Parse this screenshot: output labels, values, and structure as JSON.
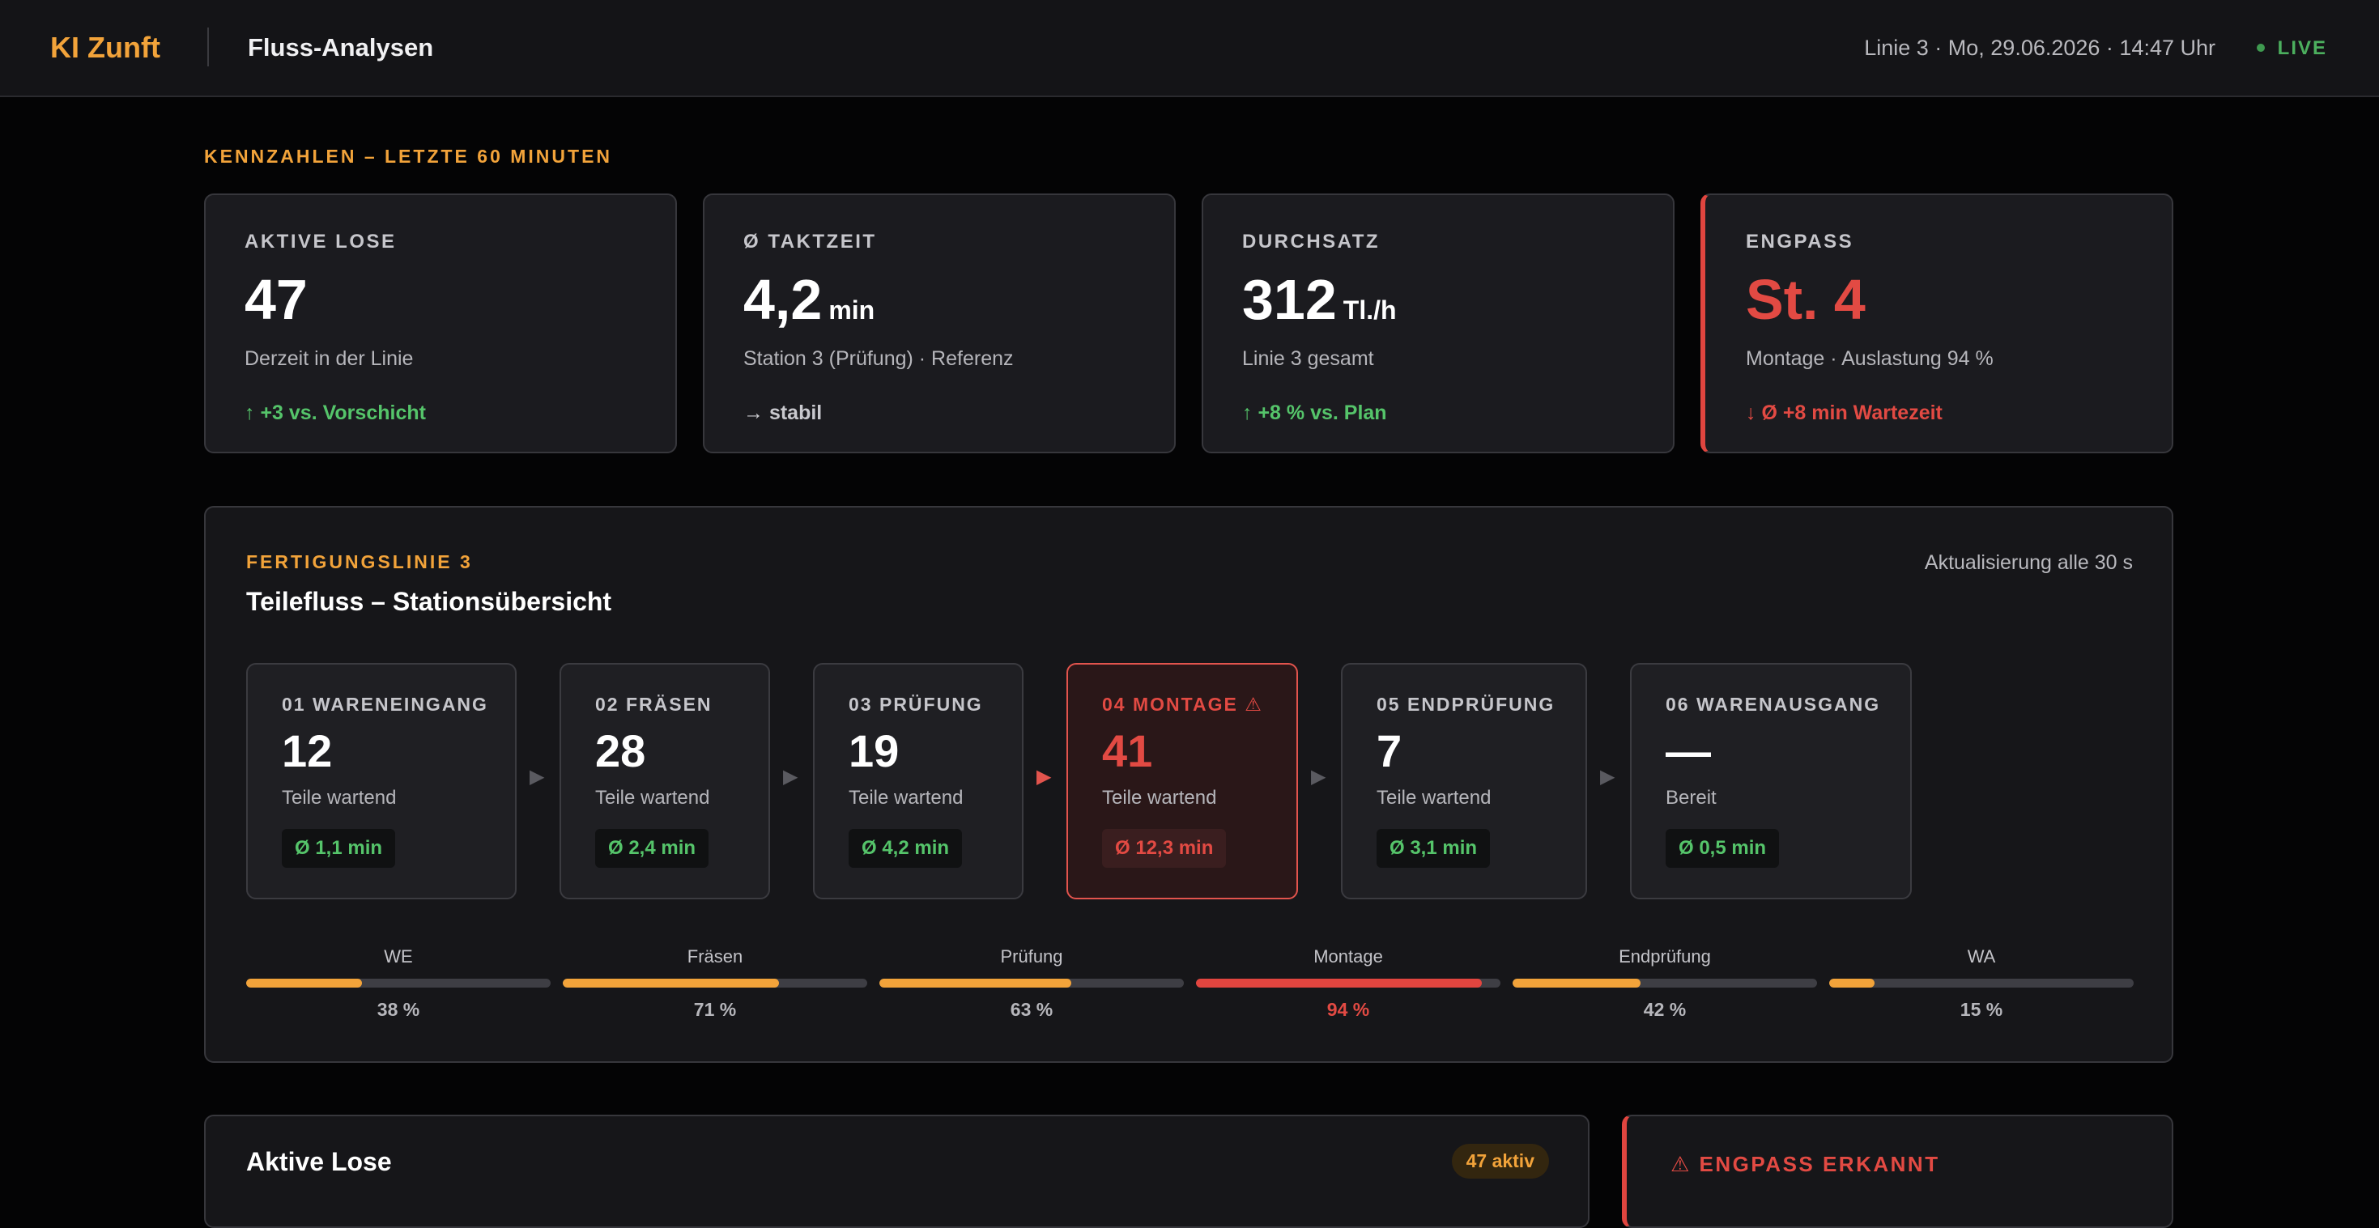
{
  "header": {
    "brand": "KI Zunft",
    "title": "Fluss-Analysen",
    "meta": "Linie 3 · Mo, 29.06.2026 · 14:47 Uhr",
    "live_label": "LIVE"
  },
  "kpi_section": {
    "label": "KENNZAHLEN – LETZTE 60 MINUTEN",
    "cards": [
      {
        "label": "AKTIVE LOSE",
        "value": "47",
        "unit": "",
        "sub": "Derzeit in der Linie",
        "trend": "↑ +3 vs. Vorschicht",
        "trend_type": "up"
      },
      {
        "label": "Ø TAKTZEIT",
        "value": "4,2",
        "unit": "min",
        "sub": "Station 3 (Prüfung) · Referenz",
        "trend": "→ stabil",
        "trend_type": "flat"
      },
      {
        "label": "DURCHSATZ",
        "value": "312",
        "unit": "Tl./h",
        "sub": "Linie 3 gesamt",
        "trend": "↑ +8 % vs. Plan",
        "trend_type": "up"
      },
      {
        "label": "ENGPASS",
        "value": "St. 4",
        "unit": "",
        "sub": "Montage · Auslastung 94 %",
        "trend": "↓ Ø +8 min Wartezeit",
        "trend_type": "down"
      }
    ]
  },
  "flow": {
    "kicker": "FERTIGUNGSLINIE 3",
    "title": "Teilefluss – Stationsübersicht",
    "refresh": "Aktualisierung alle 30 s",
    "arrow_glyph": "▶",
    "stations": [
      {
        "name": "01 WARENEINGANG",
        "count": "12",
        "sub": "Teile wartend",
        "avg": "Ø 1,1 min"
      },
      {
        "name": "02 FRÄSEN",
        "count": "28",
        "sub": "Teile wartend",
        "avg": "Ø 2,4 min"
      },
      {
        "name": "03 PRÜFUNG",
        "count": "19",
        "sub": "Teile wartend",
        "avg": "Ø 4,2 min"
      },
      {
        "name": "04 MONTAGE ⚠",
        "count": "41",
        "sub": "Teile wartend",
        "avg": "Ø 12,3 min"
      },
      {
        "name": "05 ENDPRÜFUNG",
        "count": "7",
        "sub": "Teile wartend",
        "avg": "Ø 3,1 min"
      },
      {
        "name": "06 WARENAUSGANG",
        "count": "—",
        "sub": "Bereit",
        "avg": "Ø 0,5 min"
      }
    ],
    "utilization": [
      {
        "label": "WE",
        "value": 38,
        "value_label": "38 %"
      },
      {
        "label": "Fräsen",
        "value": 71,
        "value_label": "71 %"
      },
      {
        "label": "Prüfung",
        "value": 63,
        "value_label": "63 %"
      },
      {
        "label": "Montage",
        "value": 94,
        "value_label": "94 %"
      },
      {
        "label": "Endprüfung",
        "value": 42,
        "value_label": "42 %"
      },
      {
        "label": "WA",
        "value": 15,
        "value_label": "15 %"
      }
    ]
  },
  "lots": {
    "title": "Aktive Lose",
    "badge": "47 aktiv"
  },
  "bottleneck": {
    "title": "⚠ ENGPASS ERKANNT"
  },
  "colors": {
    "accent": "#f2a33a",
    "alert": "#e24a43",
    "ok": "#55c46a",
    "background": "#040405"
  }
}
